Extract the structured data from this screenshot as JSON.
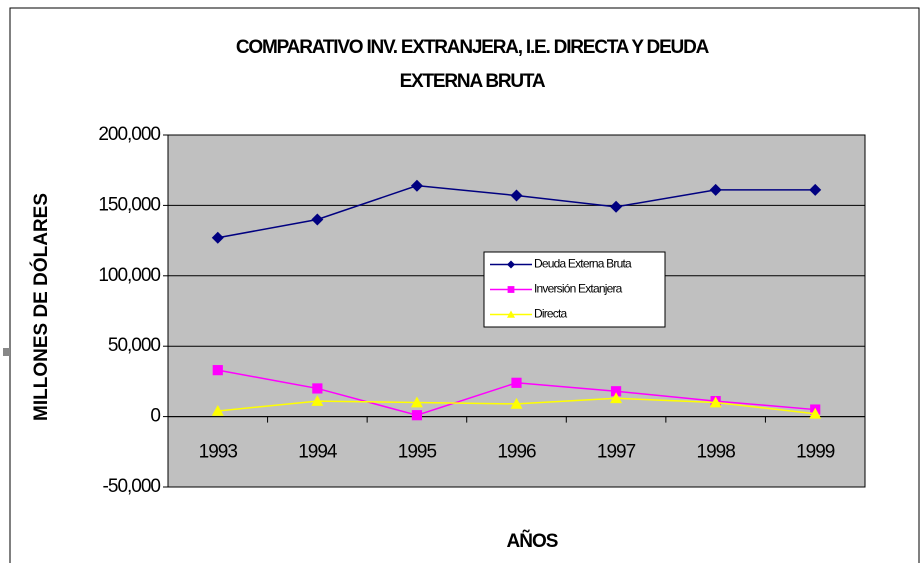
{
  "chart_data": {
    "type": "line",
    "title": [
      "COMPARATIVO INV. EXTRANJERA, I.E. DIRECTA Y DEUDA",
      "EXTERNA BRUTA"
    ],
    "x_label": "AÑOS",
    "y_label": "MILLONES DE DÓLARES",
    "categories": [
      "1993",
      "1994",
      "1995",
      "1996",
      "1997",
      "1998",
      "1999"
    ],
    "series": [
      {
        "name": "Deuda Externa Bruta",
        "color": "#000080",
        "marker": "diamond",
        "values": [
          127000,
          140000,
          164000,
          157000,
          149000,
          161000,
          161000
        ]
      },
      {
        "name": "Inversión Extanjera",
        "color": "#ff00ff",
        "marker": "square",
        "values": [
          33000,
          20000,
          1000,
          24000,
          18000,
          11000,
          5000
        ]
      },
      {
        "name": "Directa",
        "color": "#ffff00",
        "marker": "triangle",
        "values": [
          4000,
          11000,
          10000,
          9000,
          13000,
          10000,
          2000
        ]
      }
    ],
    "ylim": [
      -50000,
      200000
    ],
    "yticks": [
      {
        "value": -50000,
        "label": "-50,000"
      },
      0,
      {
        "value": 50000,
        "label": "50,000"
      },
      {
        "value": 100000,
        "label": "100,000"
      },
      {
        "value": 150000,
        "label": "150,000"
      },
      {
        "value": 200000,
        "label": "200,000"
      }
    ],
    "negative_tick_color": "#ff0000",
    "grid": true,
    "legend_position": "center",
    "plot_background": "#c0c0c0"
  }
}
